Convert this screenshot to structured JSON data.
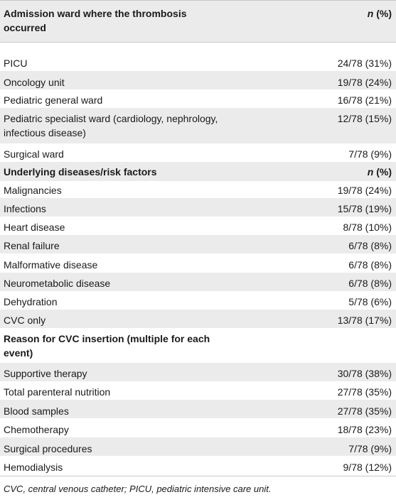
{
  "sections": [
    {
      "header": {
        "label": "Admission ward where the thrombosis occurred",
        "n_label": "n",
        "pct_label": " (%)"
      },
      "rows": [
        {
          "label": "PICU",
          "value": "24/78 (31%)"
        },
        {
          "label": "Oncology unit",
          "value": "19/78 (24%)"
        },
        {
          "label": "Pediatric general ward",
          "value": "16/78 (21%)"
        },
        {
          "label": "Pediatric specialist ward (cardiology, nephrology, infectious disease)",
          "value": "12/78 (15%)"
        },
        {
          "label": "Surgical ward",
          "value": "7/78 (9%)"
        }
      ]
    },
    {
      "header": {
        "label": "Underlying diseases/risk factors",
        "n_label": "n",
        "pct_label": " (%)"
      },
      "rows": [
        {
          "label": "Malignancies",
          "value": "19/78 (24%)"
        },
        {
          "label": "Infections",
          "value": "15/78 (19%)"
        },
        {
          "label": "Heart disease",
          "value": "8/78 (10%)"
        },
        {
          "label": "Renal failure",
          "value": "6/78 (8%)"
        },
        {
          "label": "Malformative disease",
          "value": "6/78 (8%)"
        },
        {
          "label": "Neurometabolic disease",
          "value": "6/78 (8%)"
        },
        {
          "label": "Dehydration",
          "value": "5/78 (6%)"
        },
        {
          "label": "CVC only",
          "value": "13/78 (17%)"
        }
      ]
    },
    {
      "header": {
        "label": "Reason for CVC insertion (multiple for each event)",
        "n_label": "",
        "pct_label": ""
      },
      "rows": [
        {
          "label": "Supportive therapy",
          "value": "30/78 (38%)"
        },
        {
          "label": "Total parenteral nutrition",
          "value": "27/78 (35%)"
        },
        {
          "label": "Blood samples",
          "value": "27/78 (35%)"
        },
        {
          "label": "Chemotherapy",
          "value": "18/78 (23%)"
        },
        {
          "label": "Surgical procedures",
          "value": "7/78 (9%)"
        },
        {
          "label": "Hemodialysis",
          "value": "9/78 (12%)"
        }
      ]
    }
  ],
  "footnote": "CVC, central venous catheter; PICU, pediatric intensive care unit."
}
